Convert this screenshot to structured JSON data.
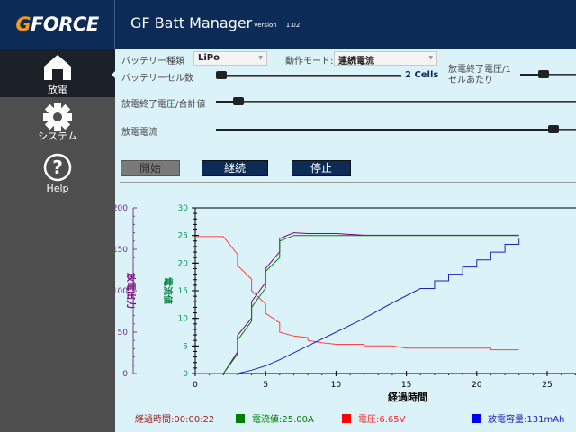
{
  "header": {
    "logo": "GFORCE",
    "title": "GF Batt Manager",
    "version_label": "Version",
    "version": "1.02"
  },
  "sidebar": {
    "items": [
      {
        "label": "放電",
        "icon": "home-icon",
        "active": true
      },
      {
        "label": "システム",
        "icon": "gear-icon"
      },
      {
        "label": "Help",
        "icon": "help-icon"
      }
    ]
  },
  "controls": {
    "battery_type_label": "バッテリー種類",
    "battery_type_value": "LiPo",
    "mode_label": "動作モード:",
    "mode_value": "連続電流",
    "cell_count_label": "バッテリーセル数",
    "cell_count_value": "2 Cells",
    "cell_count_level": 0.0,
    "end_voltage_per_cell_label_1": "放電終了電圧/1",
    "end_voltage_per_cell_label_2": "セルあたり",
    "end_voltage_per_cell_level": 0.4,
    "end_voltage_total_label": "放電終了電圧/合計値",
    "end_voltage_total_level": 0.05,
    "current_label": "放電電流",
    "current_level": 0.95
  },
  "buttons": {
    "start": "開始",
    "continue": "継続",
    "stop": "停止"
  },
  "status": {
    "elapsed": "経過時間:00:00:22",
    "current": "電流値:25.00A",
    "voltage": "電圧:6.65V",
    "capacity": "放電容量:131mAh"
  },
  "colors": {
    "current": "#008000",
    "voltage": "#ff0000",
    "capacity": "#0000ff",
    "power": "#800080"
  },
  "chart_data": {
    "type": "line",
    "xlabel": "経過時間",
    "ylabel_left": "放電出力",
    "ylabel_right": "電流値",
    "xlim": [
      0,
      27
    ],
    "xticks": [
      "0",
      "5",
      "10",
      "15",
      "20",
      "25"
    ],
    "ylim_left": [
      0,
      200
    ],
    "yticks_left": [
      "0",
      "50",
      "100",
      "150",
      "200"
    ],
    "ylim_right": [
      0,
      30
    ],
    "yticks_right": [
      "0",
      "5",
      "10",
      "15",
      "20",
      "25",
      "30"
    ],
    "grid": false,
    "series": [
      {
        "key": "power",
        "axis": "left",
        "x": [
          0,
          2,
          3,
          3,
          4,
          4,
          5,
          5,
          6,
          6,
          7,
          8,
          10,
          12,
          23
        ],
        "y": [
          0,
          0,
          26,
          46,
          67,
          87,
          110,
          127,
          147,
          163,
          170,
          169,
          169,
          167,
          167
        ]
      },
      {
        "key": "current",
        "axis": "right",
        "x": [
          0,
          2,
          3,
          3,
          4,
          4,
          5,
          5,
          6,
          6,
          7,
          23
        ],
        "y": [
          0,
          0,
          3.5,
          6,
          9.5,
          12,
          15.5,
          18.5,
          21,
          24,
          25,
          25
        ]
      },
      {
        "key": "voltage",
        "axis": "right",
        "x": [
          0,
          2,
          3,
          3,
          4,
          4,
          5,
          5,
          6,
          6,
          7,
          8,
          8,
          9,
          10,
          12,
          12,
          14,
          15,
          21,
          21,
          23
        ],
        "y": [
          24.8,
          24.8,
          21.6,
          19.6,
          17.1,
          15,
          12.6,
          10.9,
          9.2,
          7.5,
          6.8,
          6.5,
          6,
          5.6,
          5.3,
          5.3,
          5,
          5,
          4.6,
          4.6,
          4.3,
          4.3
        ]
      },
      {
        "key": "capacity",
        "axis": "right",
        "x": [
          0,
          3,
          4,
          5,
          6,
          8,
          10,
          12,
          14,
          16,
          17,
          17,
          18,
          18,
          19,
          19,
          20,
          20,
          21,
          21,
          22,
          22,
          23,
          23
        ],
        "y": [
          0,
          0,
          0.6,
          1.4,
          2.5,
          5,
          7.5,
          10,
          12.8,
          15.4,
          15.4,
          16.8,
          16.8,
          18,
          18,
          19.3,
          19.3,
          20.6,
          20.6,
          22,
          22,
          23.4,
          23.4,
          24.4
        ]
      }
    ]
  }
}
